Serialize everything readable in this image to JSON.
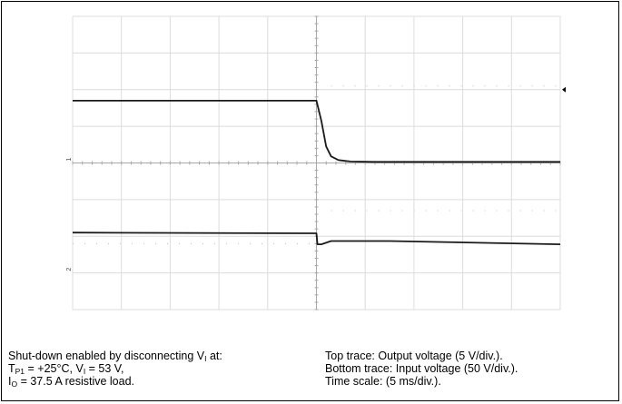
{
  "chart_data": {
    "type": "line",
    "instrument": "oscilloscope",
    "grid": {
      "h_divisions": 10,
      "v_divisions": 8,
      "minor_ticks_per_div": 5
    },
    "channel_markers": [
      "1",
      "2"
    ],
    "series": [
      {
        "name": "Top trace: Output voltage",
        "scale": "5 V/div.",
        "points_div": [
          [
            0,
            2.3
          ],
          [
            5.0,
            2.3
          ],
          [
            5.1,
            2.85
          ],
          [
            5.2,
            3.55
          ],
          [
            5.3,
            3.82
          ],
          [
            5.45,
            3.92
          ],
          [
            5.7,
            3.96
          ],
          [
            6.2,
            3.97
          ],
          [
            10,
            3.97
          ]
        ]
      },
      {
        "name": "Bottom trace: Input voltage",
        "scale": "50 V/div.",
        "points_div": [
          [
            0,
            5.9
          ],
          [
            5.0,
            5.92
          ],
          [
            5.02,
            6.22
          ],
          [
            5.1,
            6.22
          ],
          [
            5.3,
            6.13
          ],
          [
            6.5,
            6.13
          ],
          [
            10,
            6.22
          ]
        ]
      }
    ],
    "time_scale": "5 ms/div.",
    "trigger_div": 5.0
  },
  "caption": {
    "left": {
      "line1_prefix": "Shut-down enabled by disconnecting V",
      "line1_sub": "I",
      "line1_suffix": " at:",
      "line2_a": "T",
      "line2_a_sub": "P1",
      "line2_b": " = +25°C, V",
      "line2_b_sub": "I",
      "line2_c": " = 53 V,",
      "line3_a": "I",
      "line3_a_sub": "O",
      "line3_b": " = 37.5 A resistive load."
    },
    "right": {
      "line1": "Top trace: Output voltage (5 V/div.).",
      "line2": "Bottom trace: Input voltage (50 V/div.).",
      "line3": "Time scale: (5 ms/div.)."
    }
  },
  "colors": {
    "grid": "#dcdcdc",
    "axis": "#a8a8a8",
    "trace": "#1a1a1a",
    "dots": "#bdbdbd"
  }
}
